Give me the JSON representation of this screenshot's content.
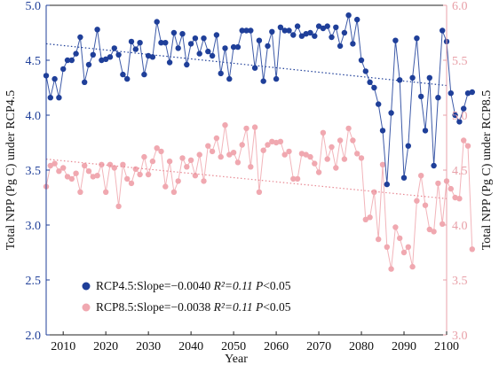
{
  "chart_data": {
    "type": "line",
    "xlabel": "Year",
    "ylabel_left": "Total NPP (Pg C) under RCP4.5",
    "ylabel_right": "Total NPP (Pg C) under RCP8.5",
    "xlim": [
      2006,
      2100
    ],
    "xticks": [
      2010,
      2020,
      2030,
      2040,
      2050,
      2060,
      2070,
      2080,
      2090,
      2100
    ],
    "ylim_left": [
      2.0,
      5.0
    ],
    "yticks_left": [
      "2.0",
      "2.5",
      "3.0",
      "3.5",
      "4.0",
      "4.5",
      "5.0"
    ],
    "ylim_right": [
      3.0,
      6.0
    ],
    "yticks_right": [
      "3.0",
      "3.5",
      "4.0",
      "4.5",
      "5.0",
      "5.5",
      "6.0"
    ],
    "colors": {
      "rcp45": "#1f3f99",
      "rcp85": "#f0a8b0",
      "right_axis": "#e8a0a8"
    },
    "series": [
      {
        "name": "RCP4.5",
        "axis": "left",
        "x_start": 2006,
        "values": [
          4.36,
          4.16,
          4.33,
          4.16,
          4.42,
          4.5,
          4.5,
          4.56,
          4.71,
          4.3,
          4.46,
          4.55,
          4.78,
          4.5,
          4.51,
          4.53,
          4.61,
          4.55,
          4.37,
          4.33,
          4.67,
          4.6,
          4.66,
          4.37,
          4.54,
          4.53,
          4.85,
          4.66,
          4.66,
          4.48,
          4.75,
          4.61,
          4.74,
          4.46,
          4.65,
          4.7,
          4.56,
          4.7,
          4.58,
          4.54,
          4.73,
          4.38,
          4.61,
          4.33,
          4.62,
          4.62,
          4.77,
          4.77,
          4.77,
          4.43,
          4.68,
          4.31,
          4.63,
          4.76,
          4.33,
          4.8,
          4.77,
          4.77,
          4.73,
          4.81,
          4.72,
          4.74,
          4.75,
          4.72,
          4.81,
          4.79,
          4.81,
          4.71,
          4.8,
          4.63,
          4.75,
          4.91,
          4.65,
          4.87,
          4.5,
          4.4,
          4.3,
          4.25,
          4.1,
          3.86,
          3.37,
          4.02,
          4.68,
          4.32,
          3.43,
          3.72,
          4.34,
          4.7,
          4.17,
          3.86,
          4.34,
          3.54,
          4.16,
          4.77,
          4.67,
          4.2,
          4.0,
          3.94,
          4.06,
          4.2,
          4.21
        ]
      },
      {
        "name": "RCP8.5",
        "axis": "right",
        "x_start": 2006,
        "values": [
          4.35,
          4.54,
          4.56,
          4.49,
          4.52,
          4.44,
          4.42,
          4.47,
          4.3,
          4.54,
          4.49,
          4.44,
          4.45,
          4.55,
          4.3,
          4.55,
          4.52,
          4.17,
          4.55,
          4.42,
          4.38,
          4.51,
          4.46,
          4.62,
          4.46,
          4.58,
          4.7,
          4.67,
          4.35,
          4.58,
          4.3,
          4.4,
          4.61,
          4.53,
          4.59,
          4.45,
          4.64,
          4.4,
          4.72,
          4.67,
          4.79,
          4.62,
          4.91,
          4.64,
          4.66,
          4.57,
          4.73,
          4.88,
          4.53,
          4.89,
          4.3,
          4.68,
          4.73,
          4.76,
          4.75,
          4.76,
          4.64,
          4.67,
          4.42,
          4.42,
          4.65,
          4.64,
          4.62,
          4.56,
          4.48,
          4.84,
          4.6,
          4.71,
          4.52,
          4.77,
          4.6,
          4.88,
          4.77,
          4.65,
          4.61,
          4.05,
          4.07,
          4.3,
          3.87,
          4.55,
          3.8,
          3.6,
          3.98,
          3.88,
          3.75,
          3.8,
          3.62,
          4.22,
          4.45,
          4.18,
          3.96,
          3.94,
          4.38,
          4.01,
          4.4,
          4.33,
          4.25,
          4.24,
          4.77,
          4.72,
          3.78
        ]
      }
    ],
    "trendlines": [
      {
        "series": "RCP4.5",
        "axis": "left",
        "x": [
          2006,
          2100
        ],
        "y": [
          4.65,
          4.27
        ]
      },
      {
        "series": "RCP8.5",
        "axis": "right",
        "x": [
          2006,
          2100
        ],
        "y": [
          4.6,
          4.24
        ]
      }
    ],
    "legend": {
      "placement": "bottom-left",
      "items": [
        {
          "series": "RCP4.5",
          "prefix": "RCP4.5:Slope=−0.0040 ",
          "r2": "R²=0.11 ",
          "p": "P",
          "p_suffix": "<0.05"
        },
        {
          "series": "RCP8.5",
          "prefix": "RCP8.5:Slope=−0.0038 ",
          "r2": "R²=0.11 ",
          "p": "P",
          "p_suffix": "<0.05"
        }
      ]
    },
    "grid": false
  }
}
